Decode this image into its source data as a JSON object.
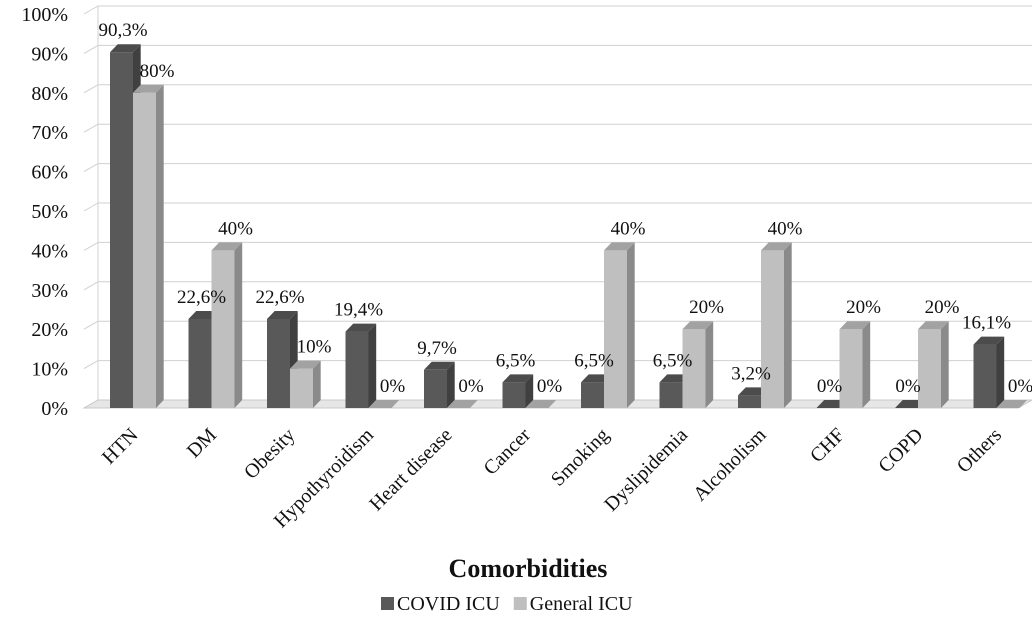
{
  "chart_data": {
    "type": "bar",
    "xlabel": "Comorbidities",
    "ylabel": "",
    "ylim": [
      0,
      100
    ],
    "yticks": [
      "0%",
      "10%",
      "20%",
      "30%",
      "40%",
      "50%",
      "60%",
      "70%",
      "80%",
      "90%",
      "100%"
    ],
    "grid": true,
    "legend_position": "bottom",
    "categories": [
      "HTN",
      "DM",
      "Obesity",
      "Hypothyroidism",
      "Heart disease",
      "Cancer",
      "Smoking",
      "Dyslipidemia",
      "Alcoholism",
      "CHF",
      "COPD",
      "Others"
    ],
    "series": [
      {
        "name": "COVID ICU",
        "color": "#595959",
        "values": [
          90.3,
          22.6,
          22.6,
          19.4,
          9.7,
          6.5,
          6.5,
          6.5,
          3.2,
          0,
          0,
          16.1
        ],
        "labels": [
          "90,3%",
          "22,6%",
          "22,6%",
          "19,4%",
          "9,7%",
          "6,5%",
          "6,5%",
          "6,5%",
          "3,2%",
          "0%",
          "0%",
          "16,1%"
        ]
      },
      {
        "name": "General ICU",
        "color": "#bfbfbf",
        "values": [
          80,
          40,
          10,
          0,
          0,
          0,
          40,
          20,
          40,
          20,
          20,
          0
        ],
        "labels": [
          "80%",
          "40%",
          "10%",
          "0%",
          "0%",
          "0%",
          "40%",
          "20%",
          "40%",
          "20%",
          "20%",
          "0%"
        ]
      }
    ]
  }
}
